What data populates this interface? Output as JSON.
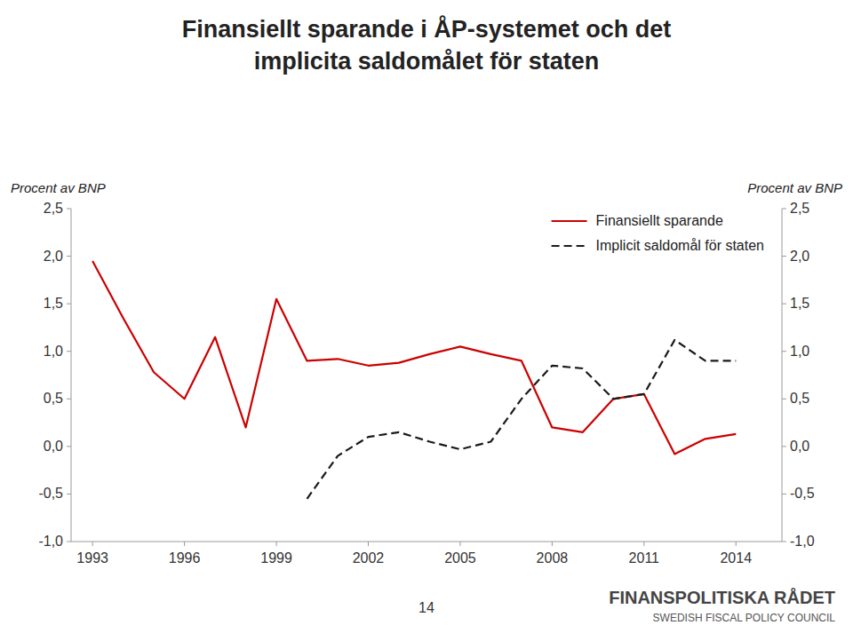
{
  "chart_data": {
    "type": "line",
    "title": [
      "Finansiellt sparande i ÅP-systemet och det",
      "implicita saldomålet för staten"
    ],
    "y_label": "Procent av BNP",
    "y2_label": "Procent av BNP",
    "x": [
      1993,
      1994,
      1995,
      1996,
      1997,
      1998,
      1999,
      2000,
      2001,
      2002,
      2003,
      2004,
      2005,
      2006,
      2007,
      2008,
      2009,
      2010,
      2011,
      2012,
      2013,
      2014
    ],
    "series": [
      {
        "name": "Finansiellt sparande",
        "color": "#CC0000",
        "line_style": "solid",
        "values": [
          1.95,
          1.35,
          0.78,
          0.5,
          1.15,
          0.2,
          1.55,
          0.9,
          0.92,
          0.85,
          0.88,
          0.97,
          1.05,
          0.97,
          0.9,
          0.2,
          0.15,
          0.5,
          0.55,
          -0.08,
          0.08,
          0.13
        ]
      },
      {
        "name": "Implicit saldomål för staten",
        "color": "#1a1a1a",
        "line_style": "dashed",
        "values": [
          null,
          null,
          null,
          null,
          null,
          null,
          null,
          -0.55,
          -0.1,
          0.1,
          0.15,
          0.05,
          -0.03,
          0.05,
          0.5,
          0.85,
          0.82,
          0.5,
          0.55,
          1.12,
          0.9,
          0.9
        ]
      }
    ],
    "xlim": [
      1992.3,
      2015.5
    ],
    "xticks": [
      1993,
      1996,
      1999,
      2002,
      2005,
      2008,
      2011,
      2014
    ],
    "ylim": [
      -1.0,
      2.5
    ],
    "yticks": [
      {
        "value": -1.0,
        "label": "-1,0"
      },
      {
        "value": -0.5,
        "label": "-0,5"
      },
      {
        "value": 0.0,
        "label": "0,0"
      },
      {
        "value": 0.5,
        "label": "0,5"
      },
      {
        "value": 1.0,
        "label": "1,0"
      },
      {
        "value": 1.5,
        "label": "1,5"
      },
      {
        "value": 2.0,
        "label": "2,0"
      },
      {
        "value": 2.5,
        "label": "2,5"
      }
    ],
    "y2lim": [
      -1.0,
      2.5
    ],
    "y2ticks": [
      {
        "value": -1.0,
        "label": "-1,0"
      },
      {
        "value": -0.5,
        "label": "-0,5"
      },
      {
        "value": 0.0,
        "label": "0,0"
      },
      {
        "value": 0.5,
        "label": "0,5"
      },
      {
        "value": 1.0,
        "label": "1,0"
      },
      {
        "value": 1.5,
        "label": "1,5"
      },
      {
        "value": 2.0,
        "label": "2,0"
      },
      {
        "value": 2.5,
        "label": "2,5"
      }
    ],
    "grid": false,
    "legend": "upper right",
    "annotations": [
      "14",
      "FINANSPOLITISKA RÅDET",
      "SWEDISH FISCAL POLICY COUNCIL"
    ]
  }
}
